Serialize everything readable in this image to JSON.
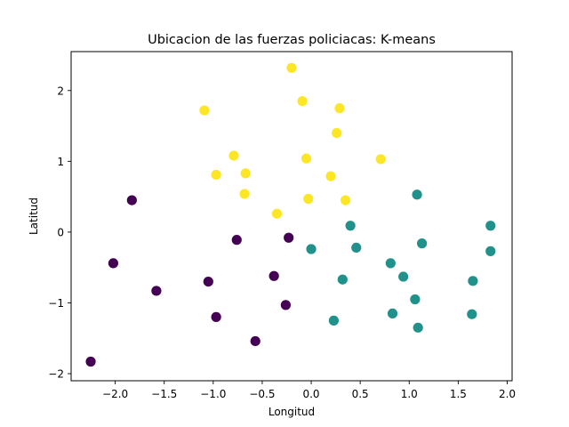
{
  "chart_data": {
    "type": "scatter",
    "title": "Ubicacion de las fuerzas policiacas: K-means",
    "xlabel": "Longitud",
    "ylabel": "Latitud",
    "xlim": [
      -2.45,
      2.05
    ],
    "ylim": [
      -2.1,
      2.55
    ],
    "xticks": [
      -2.0,
      -1.5,
      -1.0,
      -0.5,
      0.0,
      0.5,
      1.0,
      1.5,
      2.0
    ],
    "xtick_labels": [
      "−2.0",
      "−1.5",
      "−1.0",
      "−0.5",
      "0.0",
      "0.5",
      "1.0",
      "1.5",
      "2.0"
    ],
    "yticks": [
      -2,
      -1,
      0,
      1,
      2
    ],
    "ytick_labels": [
      "−2",
      "−1",
      "0",
      "1",
      "2"
    ],
    "grid": false,
    "legend": false,
    "series": [
      {
        "color": "#440154",
        "points": [
          [
            -2.25,
            -1.83
          ],
          [
            -1.83,
            0.45
          ],
          [
            -2.02,
            -0.44
          ],
          [
            -1.58,
            -0.83
          ],
          [
            -1.05,
            -0.7
          ],
          [
            -0.97,
            -1.2
          ],
          [
            -0.76,
            -0.11
          ],
          [
            -0.57,
            -1.54
          ],
          [
            -0.38,
            -0.62
          ],
          [
            -0.26,
            -1.03
          ],
          [
            -0.23,
            -0.08
          ]
        ]
      },
      {
        "color": "#21918c",
        "points": [
          [
            0.0,
            -0.24
          ],
          [
            0.23,
            -1.25
          ],
          [
            0.32,
            -0.67
          ],
          [
            0.4,
            0.09
          ],
          [
            0.46,
            -0.22
          ],
          [
            0.81,
            -0.44
          ],
          [
            0.83,
            -1.15
          ],
          [
            0.94,
            -0.63
          ],
          [
            1.06,
            -0.95
          ],
          [
            1.08,
            0.53
          ],
          [
            1.09,
            -1.35
          ],
          [
            1.13,
            -0.16
          ],
          [
            1.64,
            -1.16
          ],
          [
            1.65,
            -0.69
          ],
          [
            1.83,
            -0.27
          ],
          [
            1.83,
            0.09
          ]
        ]
      },
      {
        "color": "#fde725",
        "points": [
          [
            -1.09,
            1.72
          ],
          [
            -0.97,
            0.81
          ],
          [
            -0.79,
            1.08
          ],
          [
            -0.68,
            0.54
          ],
          [
            -0.67,
            0.83
          ],
          [
            -0.35,
            0.26
          ],
          [
            -0.2,
            2.32
          ],
          [
            -0.09,
            1.85
          ],
          [
            -0.05,
            1.04
          ],
          [
            -0.03,
            0.47
          ],
          [
            0.2,
            0.79
          ],
          [
            0.26,
            1.4
          ],
          [
            0.29,
            1.75
          ],
          [
            0.35,
            0.45
          ],
          [
            0.71,
            1.03
          ]
        ]
      }
    ]
  }
}
